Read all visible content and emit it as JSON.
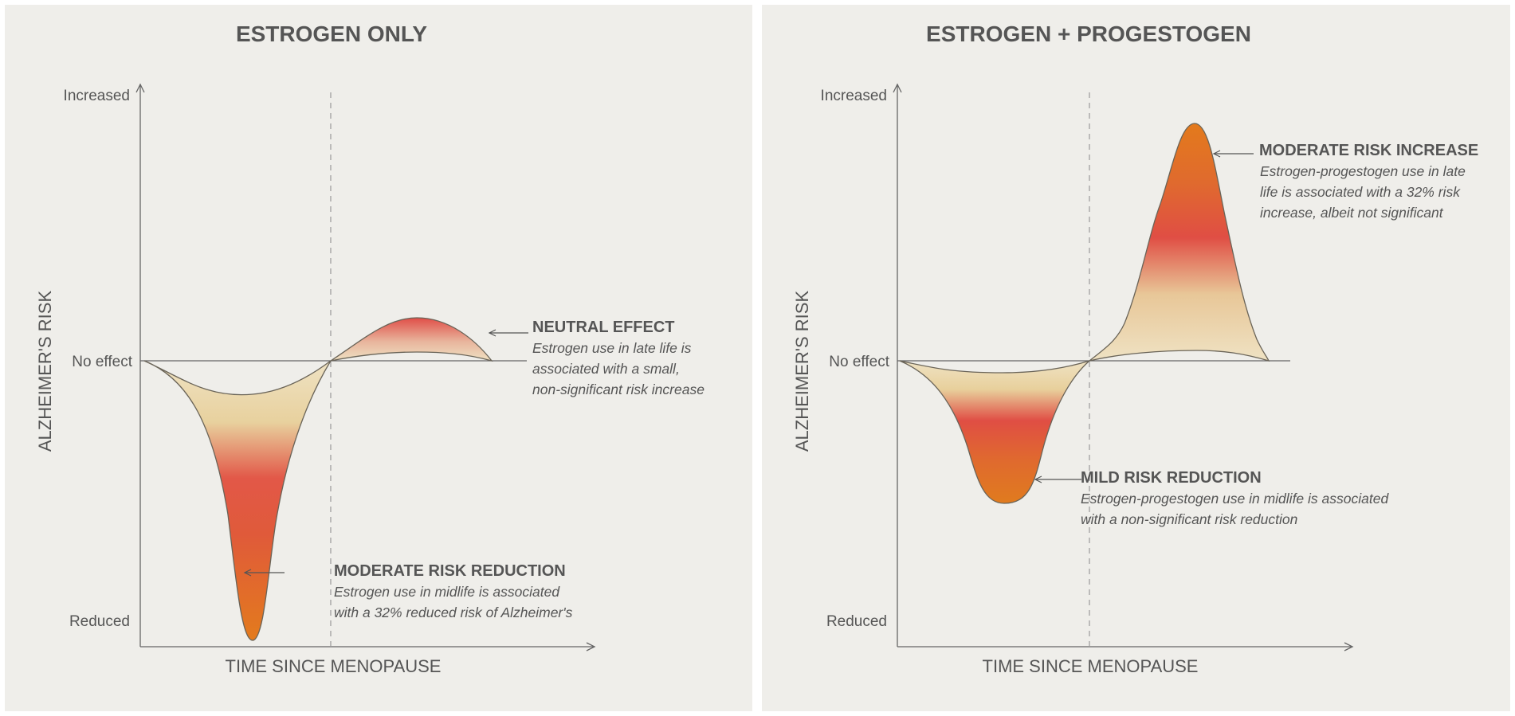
{
  "panels": [
    {
      "title": "ESTROGEN ONLY",
      "y_label": "ALZHEIMER'S RISK",
      "x_label": "TIME SINCE MENOPAUSE",
      "y_ticks": {
        "increased": "Increased",
        "no_effect": "No effect",
        "reduced": "Reduced"
      },
      "annotations": [
        {
          "heading": "MODERATE RISK REDUCTION",
          "lines": [
            "Estrogen use in midlife is associated",
            "with a 32% reduced risk of Alzheimer's"
          ]
        },
        {
          "heading": "NEUTRAL EFFECT",
          "lines": [
            "Estrogen use in late life is",
            "associated with a small,",
            "non-significant risk increase"
          ]
        }
      ]
    },
    {
      "title": "ESTROGEN + PROGESTOGEN",
      "y_label": "ALZHEIMER'S RISK",
      "x_label": "TIME SINCE MENOPAUSE",
      "y_ticks": {
        "increased": "Increased",
        "no_effect": "No effect",
        "reduced": "Reduced"
      },
      "annotations": [
        {
          "heading": "MILD RISK REDUCTION",
          "lines": [
            "Estrogen-progestogen use in midlife is associated",
            "with a non-significant risk reduction"
          ]
        },
        {
          "heading": "MODERATE RISK INCREASE",
          "lines": [
            "Estrogen-progestogen use in late",
            "life is associated with a 32% risk",
            "increase, albeit not significant"
          ]
        }
      ]
    }
  ],
  "colors": {
    "panel_bg": "#efeeea",
    "text": "#555555",
    "gradient_light": "#e8d4a6",
    "gradient_red": "#e04e44",
    "gradient_orange": "#e07b1e"
  }
}
